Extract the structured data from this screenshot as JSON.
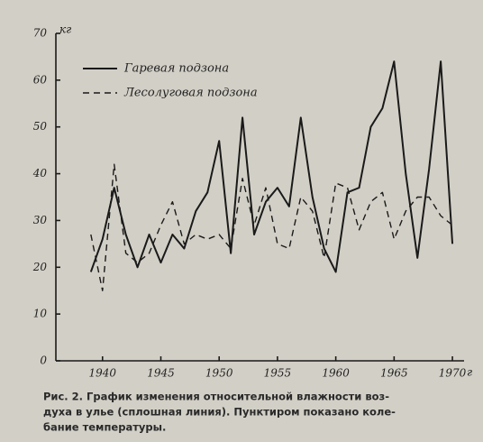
{
  "chart_data": {
    "type": "line",
    "y_unit": "кг",
    "x_unit": "г",
    "x": [
      1939,
      1940,
      1941,
      1942,
      1943,
      1944,
      1945,
      1946,
      1947,
      1948,
      1949,
      1950,
      1951,
      1952,
      1953,
      1954,
      1955,
      1956,
      1957,
      1958,
      1959,
      1960,
      1961,
      1962,
      1963,
      1964,
      1965,
      1966,
      1967,
      1968,
      1969,
      1970
    ],
    "series": [
      {
        "name": "Гаревая подзона",
        "color": "#1a1a1a",
        "line_style": "solid",
        "values": [
          19,
          26,
          37,
          27,
          20,
          27,
          21,
          27,
          24,
          32,
          36,
          47,
          23,
          52,
          27,
          34,
          37,
          33,
          52,
          35,
          24,
          19,
          36,
          37,
          50,
          54,
          64,
          40,
          22,
          41,
          64,
          25
        ]
      },
      {
        "name": "Лесолуговая подзона",
        "color": "#1a1a1a",
        "line_style": "dashed",
        "values": [
          27,
          15,
          42,
          23,
          21,
          23,
          29,
          34,
          25,
          27,
          26,
          27,
          24,
          39,
          29,
          37,
          25,
          24,
          35,
          32,
          22,
          38,
          37,
          28,
          34,
          36,
          26,
          32,
          35,
          35,
          31,
          29
        ]
      }
    ],
    "xlim": [
      1936,
      1971
    ],
    "xticks": [
      1940,
      1945,
      1950,
      1955,
      1960,
      1965,
      1970
    ],
    "ylim": [
      0,
      70
    ],
    "yticks": [
      0,
      10,
      20,
      30,
      40,
      50,
      60,
      70
    ],
    "legend": "top-left",
    "caption": [
      "Рис. 2. График изменения относительной влажности воз-",
      "духа в улье (сплошная линия). Пунктиром показано коле-",
      "бание температуры."
    ]
  }
}
